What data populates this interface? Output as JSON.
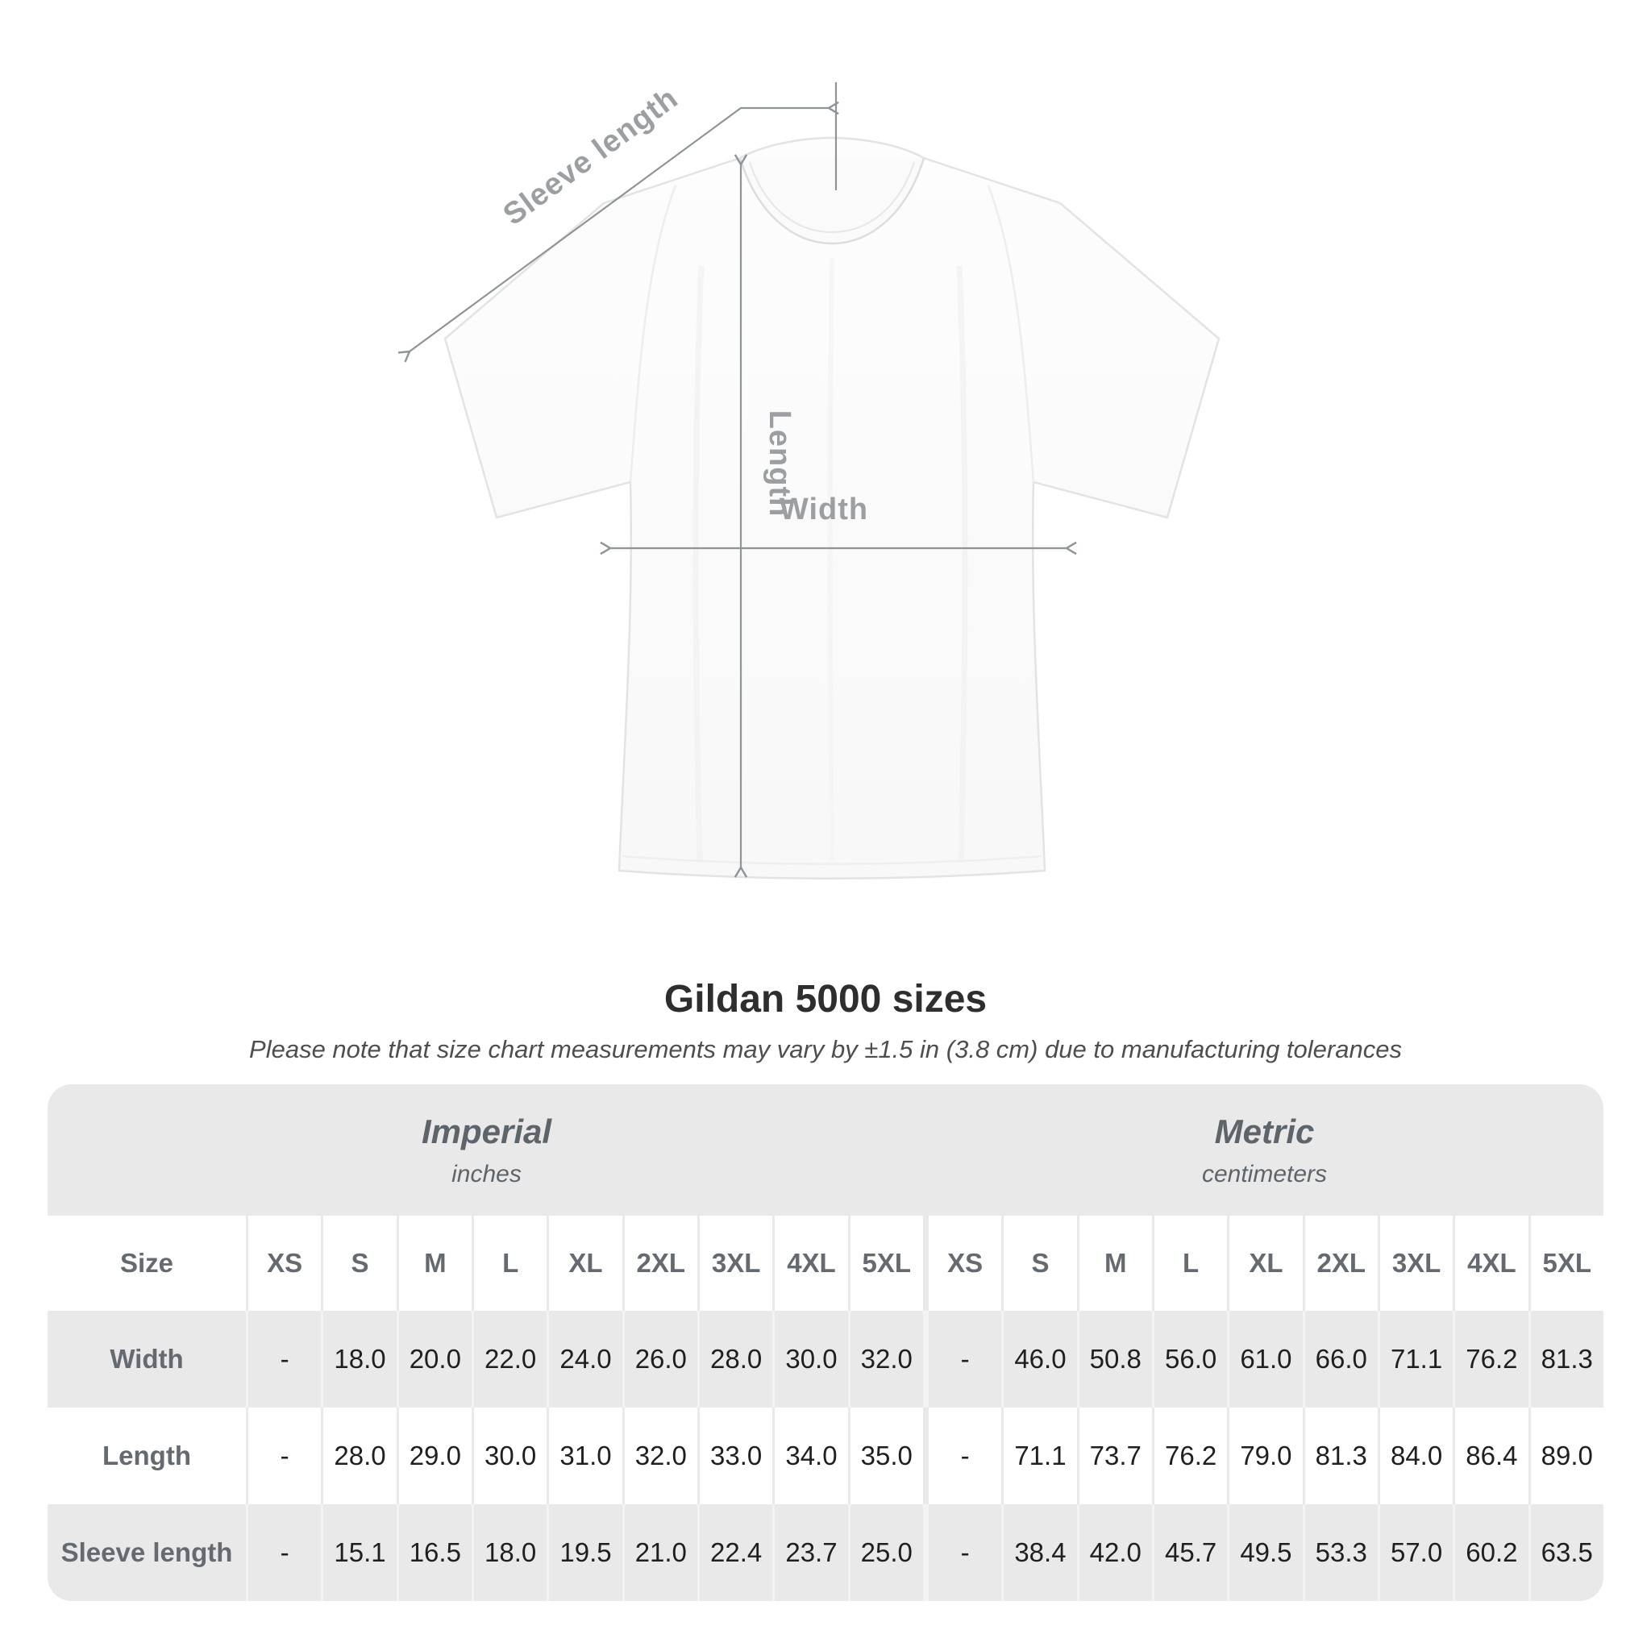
{
  "title": "Gildan 5000 sizes",
  "subtitle": "Please note that size chart measurements may vary by ±1.5 in (3.8 cm) due to manufacturing tolerances",
  "diagram": {
    "labels": {
      "sleeve": "Sleeve length",
      "length": "Length",
      "width": "Width"
    },
    "line_color": "#8f9497",
    "label_color": "#9b9fa2",
    "shirt_fill": "#fcfcfc",
    "shirt_outline": "#e3e3e3"
  },
  "colors": {
    "band_gray": "#e9e9e9",
    "row_gray": "#e9e9e9",
    "separator_on_gray": "#f3f3f3",
    "header_text": "#646a6f",
    "value_text": "#1f1f1f",
    "title_text": "#2e2e2e",
    "note_text": "#4e4e4e"
  },
  "chart_data": {
    "type": "table",
    "title": "Gildan 5000 sizes",
    "note": "Please note that size chart measurements may vary by ±1.5 in (3.8 cm) due to manufacturing tolerances",
    "size_header": "Size",
    "groups": [
      {
        "label": "Imperial",
        "unit": "inches"
      },
      {
        "label": "Metric",
        "unit": "centimeters"
      }
    ],
    "sizes": [
      "XS",
      "S",
      "M",
      "L",
      "XL",
      "2XL",
      "3XL",
      "4XL",
      "5XL"
    ],
    "rows": [
      {
        "label": "Width",
        "imperial": [
          "-",
          "18.0",
          "20.0",
          "22.0",
          "24.0",
          "26.0",
          "28.0",
          "30.0",
          "32.0"
        ],
        "metric": [
          "-",
          "46.0",
          "50.8",
          "56.0",
          "61.0",
          "66.0",
          "71.1",
          "76.2",
          "81.3"
        ]
      },
      {
        "label": "Length",
        "imperial": [
          "-",
          "28.0",
          "29.0",
          "30.0",
          "31.0",
          "32.0",
          "33.0",
          "34.0",
          "35.0"
        ],
        "metric": [
          "-",
          "71.1",
          "73.7",
          "76.2",
          "79.0",
          "81.3",
          "84.0",
          "86.4",
          "89.0"
        ]
      },
      {
        "label": "Sleeve length",
        "imperial": [
          "-",
          "15.1",
          "16.5",
          "18.0",
          "19.5",
          "21.0",
          "22.4",
          "23.7",
          "25.0"
        ],
        "metric": [
          "-",
          "38.4",
          "42.0",
          "45.7",
          "49.5",
          "53.3",
          "57.0",
          "60.2",
          "63.5"
        ]
      }
    ]
  }
}
